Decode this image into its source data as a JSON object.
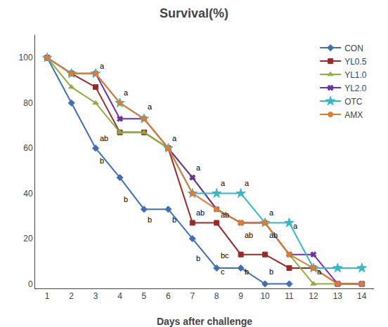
{
  "chart_data": {
    "type": "line",
    "title": "Survival(%)",
    "xlabel": "Days after challenge",
    "xlim": [
      0.5,
      14.5
    ],
    "ylim": [
      -2,
      110
    ],
    "xticks": [
      1,
      2,
      3,
      4,
      5,
      6,
      7,
      8,
      9,
      10,
      11,
      12,
      13,
      14
    ],
    "yticks": [
      0,
      20,
      40,
      60,
      80,
      100
    ],
    "grid": false,
    "legend": "upper right",
    "series": [
      {
        "name": "CON",
        "color": "#3f6ebd",
        "marker": "diamond",
        "x": [
          1,
          2,
          3,
          4,
          5,
          6,
          7,
          8,
          9,
          10,
          11
        ],
        "values": [
          100,
          80,
          60,
          47,
          33,
          33,
          20,
          7,
          7,
          0,
          0
        ]
      },
      {
        "name": "YL0.5",
        "color": "#9b2926",
        "marker": "square",
        "x": [
          1,
          2,
          3,
          4,
          5,
          6,
          7,
          8,
          9,
          10,
          11,
          12,
          13,
          14
        ],
        "values": [
          100,
          93,
          87,
          67,
          67,
          60,
          27,
          27,
          13,
          13,
          7,
          7,
          0,
          0
        ]
      },
      {
        "name": "YL1.0",
        "color": "#8db03b",
        "marker": "triangle-up",
        "x": [
          1,
          2,
          3,
          4,
          5,
          6,
          7,
          8,
          9,
          10,
          11,
          12,
          13,
          14
        ],
        "values": [
          100,
          87,
          80,
          67,
          67,
          60,
          47,
          33,
          27,
          27,
          13,
          0,
          0,
          0
        ]
      },
      {
        "name": "YL2.0",
        "color": "#7030a0",
        "marker": "x",
        "x": [
          1,
          2,
          3,
          4,
          5,
          6,
          7,
          8,
          9,
          10,
          11,
          12,
          13,
          14
        ],
        "values": [
          100,
          93,
          93,
          73,
          73,
          60,
          47,
          33,
          27,
          27,
          13,
          13,
          0,
          0
        ]
      },
      {
        "name": "OTC",
        "color": "#31b8cd",
        "marker": "star",
        "x": [
          1,
          2,
          3,
          4,
          5,
          6,
          7,
          8,
          9,
          10,
          11,
          12,
          13,
          14
        ],
        "values": [
          100,
          93,
          93,
          80,
          73,
          60,
          40,
          40,
          40,
          27,
          27,
          7,
          7,
          7
        ]
      },
      {
        "name": "AMX",
        "color": "#e07b2e",
        "marker": "circle",
        "x": [
          1,
          2,
          3,
          4,
          5,
          6,
          7,
          8,
          9,
          10,
          11,
          12,
          13,
          14
        ],
        "values": [
          100,
          93,
          93,
          80,
          73,
          60,
          40,
          33,
          27,
          27,
          13,
          7,
          0,
          0
        ]
      }
    ],
    "annotations": [
      {
        "x": 3.1,
        "y": 94,
        "text": "a"
      },
      {
        "x": 3.1,
        "y": 62,
        "text": "ab"
      },
      {
        "x": 3.1,
        "y": 52,
        "text": "b"
      },
      {
        "x": 4.1,
        "y": 82,
        "text": "a"
      },
      {
        "x": 4.1,
        "y": 35,
        "text": "b"
      },
      {
        "x": 5.1,
        "y": 76,
        "text": "a"
      },
      {
        "x": 5.1,
        "y": 26,
        "text": "b"
      },
      {
        "x": 6.1,
        "y": 62,
        "text": "a"
      },
      {
        "x": 6.1,
        "y": 26,
        "text": "b"
      },
      {
        "x": 7.1,
        "y": 49,
        "text": "a"
      },
      {
        "x": 7.1,
        "y": 29,
        "text": "ab"
      },
      {
        "x": 7.1,
        "y": 9,
        "text": "b"
      },
      {
        "x": 8.1,
        "y": 42,
        "text": "a"
      },
      {
        "x": 8.1,
        "y": 28,
        "text": "ab"
      },
      {
        "x": 8.1,
        "y": 10,
        "text": "bc"
      },
      {
        "x": 8.1,
        "y": 3,
        "text": "c"
      },
      {
        "x": 9.1,
        "y": 42,
        "text": "a"
      },
      {
        "x": 9.1,
        "y": 19,
        "text": "ab"
      },
      {
        "x": 9.1,
        "y": 3,
        "text": "b"
      },
      {
        "x": 10.1,
        "y": 29,
        "text": "a"
      },
      {
        "x": 10.1,
        "y": 19,
        "text": "ab"
      },
      {
        "x": 10.1,
        "y": 3,
        "text": "b"
      },
      {
        "x": 11.1,
        "y": 23,
        "text": "a"
      },
      {
        "x": 12.1,
        "y": 3,
        "text": "a"
      }
    ]
  }
}
